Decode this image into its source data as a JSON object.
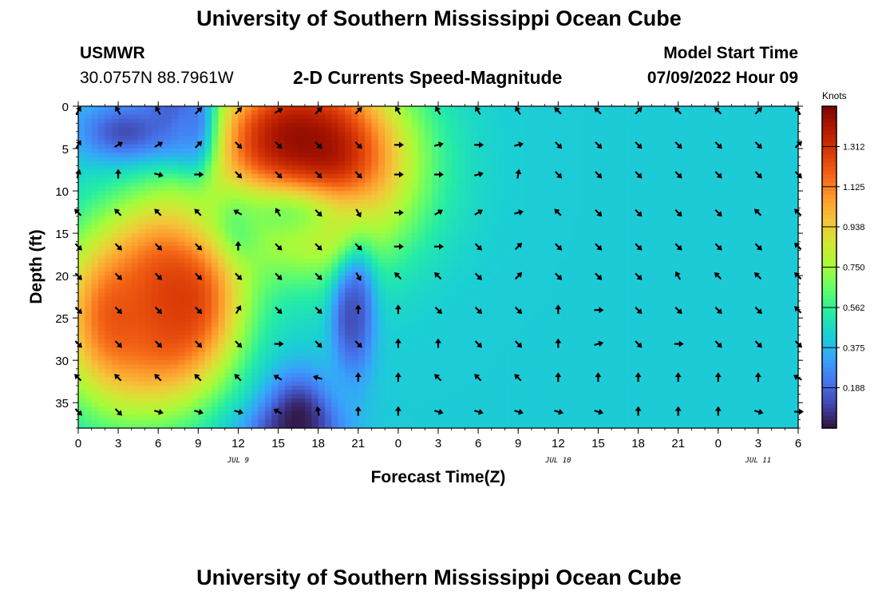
{
  "page": {
    "title": "University of Southern Mississippi Ocean Cube",
    "station_id": "USMWR",
    "station_coords": "30.0757N  88.7961W",
    "plot_title": "2-D Currents Speed-Magnitude",
    "model_label": "Model Start Time",
    "model_time": "07/09/2022 Hour 09",
    "footer_title": "University of Southern Mississippi Ocean Cube"
  },
  "chart_data": {
    "type": "heatmap",
    "xlabel": "Forecast Time(Z)",
    "ylabel": "Depth (ft)",
    "x_tick_labels": [
      "0",
      "3",
      "6",
      "9",
      "12",
      "15",
      "18",
      "21",
      "0",
      "3",
      "6",
      "9",
      "12",
      "15",
      "18",
      "21",
      "0",
      "3",
      "6"
    ],
    "x_range_hours": [
      0,
      54
    ],
    "date_labels": [
      {
        "label": "JUL 9",
        "hour": 12
      },
      {
        "label": "JUL 10",
        "hour": 36
      },
      {
        "label": "JUL 11",
        "hour": 51
      }
    ],
    "y_tick_labels": [
      "0",
      "5",
      "10",
      "15",
      "20",
      "25",
      "30",
      "35"
    ],
    "y_range_ft": [
      0,
      38
    ],
    "y_inverted": true,
    "colorbar": {
      "title": "Knots",
      "tick_labels": [
        "1.312",
        "1.125",
        "0.938",
        "0.750",
        "0.562",
        "0.375",
        "0.188"
      ],
      "range": [
        0,
        1.5
      ]
    },
    "colorscale": [
      "#30123b",
      "#4145ab",
      "#4675ed",
      "#39a2fc",
      "#1bcfd4",
      "#24eca6",
      "#61fc6c",
      "#a4fc3b",
      "#d1e834",
      "#f3c63a",
      "#fe9b2d",
      "#f36315",
      "#d93806",
      "#b11901",
      "#7a0402"
    ],
    "magnitude_centers": [
      {
        "x": 7.5,
        "y": 0.5,
        "v": 0.02,
        "sx": 1.8,
        "sy": 3.5
      },
      {
        "x": 8.5,
        "y": 4.5,
        "v": 0.08,
        "sx": 1.5,
        "sy": 2.5
      },
      {
        "x": 16,
        "y": 3.5,
        "v": 1.35,
        "sx": 3.8,
        "sy": 4.8
      },
      {
        "x": 6.5,
        "y": 23,
        "v": 1.25,
        "sx": 2.8,
        "sy": 7.5
      },
      {
        "x": 21,
        "y": 21,
        "v": 0.05,
        "sx": 0.9,
        "sy": 6.5
      },
      {
        "x": 12.2,
        "y": 14,
        "v": 0.1,
        "sx": 1.1,
        "sy": 2.5
      },
      {
        "x": 16,
        "y": 38,
        "v": 0.1,
        "sx": 2.5,
        "sy": 2
      },
      {
        "x": 9,
        "y": 2.5,
        "v": 0.05,
        "sx": 0.9,
        "sy": 4
      },
      {
        "x": 8,
        "y": 23,
        "v": 1.3,
        "sx": 3,
        "sy": 6.5
      },
      {
        "x": 16.5,
        "y": 36.5,
        "v": 0.0,
        "sx": 1.7,
        "sy": 3.5
      },
      {
        "x": 18,
        "y": 7,
        "v": 1.5,
        "sx": 4.8,
        "sy": 7.5
      },
      {
        "x": 20.3,
        "y": 25,
        "v": 0.12,
        "sx": 0.9,
        "sy": 4
      },
      {
        "x": 2.7,
        "y": 25,
        "v": 1.25,
        "sx": 3.2,
        "sy": 7.5
      },
      {
        "x": 3.5,
        "y": 3,
        "v": 0.1,
        "sx": 2.5,
        "sy": 2.5
      },
      {
        "x": 15.5,
        "y": 13,
        "v": 0.65,
        "sx": 4,
        "sy": 3
      }
    ],
    "magnitude_background_knots": 0.42,
    "arrow_rows_ft": [
      0,
      4,
      7.5,
      12,
      16,
      19.5,
      23.5,
      27.5,
      31.5,
      35.5
    ],
    "arrow_columns_hours": [
      0,
      3,
      6,
      9,
      12,
      15,
      18,
      21,
      24,
      27,
      30,
      33,
      36,
      39,
      42,
      45,
      48,
      51,
      54
    ],
    "arrow_angles_deg": [
      [
        -60,
        -120,
        -120,
        -45,
        -45,
        -30,
        -45,
        -45,
        -120,
        -120,
        -120,
        -120,
        -135,
        -135,
        -45,
        -135,
        -135,
        -45,
        -120
      ],
      [
        -60,
        -30,
        -30,
        -45,
        45,
        45,
        45,
        45,
        0,
        -15,
        0,
        -15,
        45,
        45,
        45,
        45,
        45,
        45,
        -45
      ],
      [
        -75,
        -90,
        15,
        0,
        45,
        45,
        45,
        45,
        0,
        0,
        -15,
        -80,
        45,
        45,
        45,
        45,
        45,
        45,
        45
      ],
      [
        -135,
        -135,
        -135,
        -135,
        -150,
        -120,
        45,
        60,
        0,
        -30,
        -30,
        -15,
        -135,
        45,
        45,
        45,
        45,
        -135,
        -135
      ],
      [
        45,
        45,
        45,
        45,
        -90,
        45,
        45,
        45,
        0,
        0,
        45,
        -45,
        45,
        45,
        45,
        45,
        45,
        45,
        -135
      ],
      [
        45,
        45,
        45,
        45,
        45,
        45,
        45,
        60,
        -135,
        -135,
        45,
        -45,
        45,
        45,
        45,
        -120,
        -135,
        -135,
        -135
      ],
      [
        45,
        45,
        45,
        45,
        -60,
        45,
        45,
        -90,
        -90,
        45,
        45,
        45,
        -90,
        0,
        45,
        45,
        45,
        45,
        -135
      ],
      [
        45,
        45,
        45,
        45,
        45,
        0,
        45,
        45,
        -90,
        -90,
        45,
        45,
        -90,
        -15,
        45,
        0,
        45,
        45,
        45
      ],
      [
        -135,
        -135,
        -135,
        -135,
        -135,
        -150,
        -165,
        -90,
        -90,
        -135,
        -135,
        -135,
        -90,
        -90,
        -90,
        -90,
        -90,
        -90,
        -150
      ],
      [
        45,
        45,
        15,
        15,
        15,
        -150,
        -100,
        -90,
        -90,
        15,
        15,
        15,
        15,
        15,
        -90,
        -90,
        -90,
        15,
        0
      ]
    ]
  }
}
